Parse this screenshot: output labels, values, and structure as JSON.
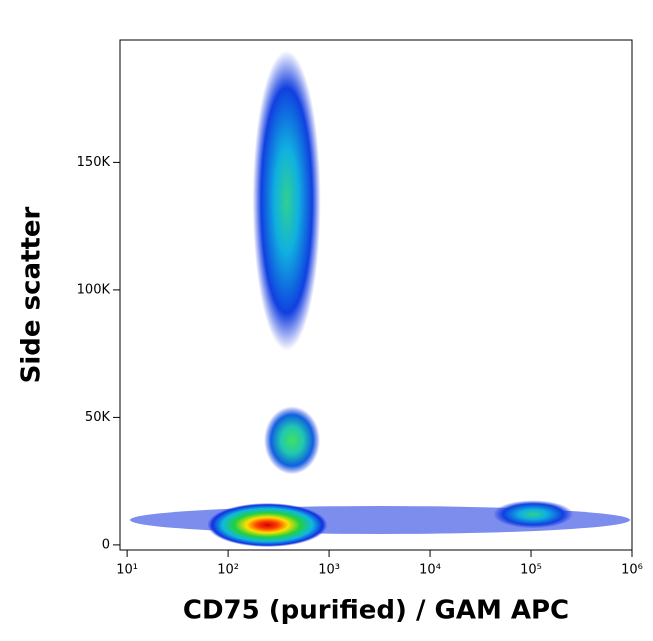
{
  "chart_data": {
    "type": "density",
    "x_label": "CD75 (purified) / GAM APC",
    "y_label": "Side scatter",
    "x_scale": "log",
    "xlim": [
      8.5,
      1000000
    ],
    "ylim": [
      -2000,
      198000
    ],
    "xticks": [
      {
        "value": 10,
        "label": "10¹"
      },
      {
        "value": 100,
        "label": "10²"
      },
      {
        "value": 1000,
        "label": "10³"
      },
      {
        "value": 10000,
        "label": "10⁴"
      },
      {
        "value": 100000,
        "label": "10⁵"
      },
      {
        "value": 1000000,
        "label": "10⁶"
      }
    ],
    "yticks": [
      {
        "value": 0,
        "label": "0"
      },
      {
        "value": 50000,
        "label": "50K"
      },
      {
        "value": 100000,
        "label": "100K"
      },
      {
        "value": 150000,
        "label": "150K"
      }
    ],
    "x": [
      245,
      430,
      380,
      105000
    ],
    "y": [
      7800,
      41000,
      135000,
      12000
    ]
  }
}
